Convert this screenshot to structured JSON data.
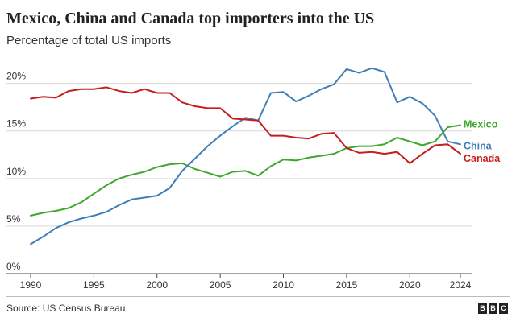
{
  "chart_data": {
    "type": "line",
    "title": "Mexico, China and Canada top importers into the US",
    "subtitle": "Percentage of total US imports",
    "xlabel": "",
    "ylabel": "",
    "xlim": [
      1990,
      2024
    ],
    "ylim": [
      0,
      22
    ],
    "x_ticks": [
      1990,
      1995,
      2000,
      2005,
      2010,
      2015,
      2020,
      2024
    ],
    "y_ticks": [
      0,
      5,
      10,
      15,
      20
    ],
    "y_tick_labels": [
      "0%",
      "5%",
      "10%",
      "15%",
      "20%"
    ],
    "grid": "horizontal",
    "x": [
      1990,
      1991,
      1992,
      1993,
      1994,
      1995,
      1996,
      1997,
      1998,
      1999,
      2000,
      2001,
      2002,
      2003,
      2004,
      2005,
      2006,
      2007,
      2008,
      2009,
      2010,
      2011,
      2012,
      2013,
      2014,
      2015,
      2016,
      2017,
      2018,
      2019,
      2020,
      2021,
      2022,
      2023,
      2024
    ],
    "series": [
      {
        "name": "Mexico",
        "color": "#3fa72f",
        "values": [
          6.1,
          6.4,
          6.6,
          6.9,
          7.5,
          8.4,
          9.3,
          10.0,
          10.4,
          10.7,
          11.2,
          11.5,
          11.6,
          11.0,
          10.6,
          10.2,
          10.7,
          10.8,
          10.3,
          11.3,
          12.0,
          11.9,
          12.2,
          12.4,
          12.6,
          13.2,
          13.4,
          13.4,
          13.6,
          14.3,
          13.9,
          13.5,
          13.9,
          15.4,
          15.6
        ]
      },
      {
        "name": "China",
        "color": "#3f7fb8",
        "values": [
          3.1,
          3.9,
          4.8,
          5.4,
          5.8,
          6.1,
          6.5,
          7.2,
          7.8,
          8.0,
          8.2,
          9.0,
          10.8,
          12.1,
          13.4,
          14.5,
          15.5,
          16.4,
          16.1,
          19.0,
          19.1,
          18.1,
          18.7,
          19.4,
          19.9,
          21.5,
          21.1,
          21.6,
          21.2,
          18.0,
          18.6,
          17.9,
          16.6,
          13.9,
          13.6
        ]
      },
      {
        "name": "Canada",
        "color": "#c41e1e",
        "values": [
          18.4,
          18.6,
          18.5,
          19.2,
          19.4,
          19.4,
          19.6,
          19.2,
          19.0,
          19.4,
          19.0,
          19.0,
          18.0,
          17.6,
          17.4,
          17.4,
          16.3,
          16.2,
          16.1,
          14.5,
          14.5,
          14.3,
          14.2,
          14.7,
          14.8,
          13.2,
          12.7,
          12.8,
          12.6,
          12.8,
          11.6,
          12.6,
          13.5,
          13.6,
          12.6
        ]
      }
    ],
    "source": "Source: US Census Bureau",
    "logo_text": "BBC"
  }
}
